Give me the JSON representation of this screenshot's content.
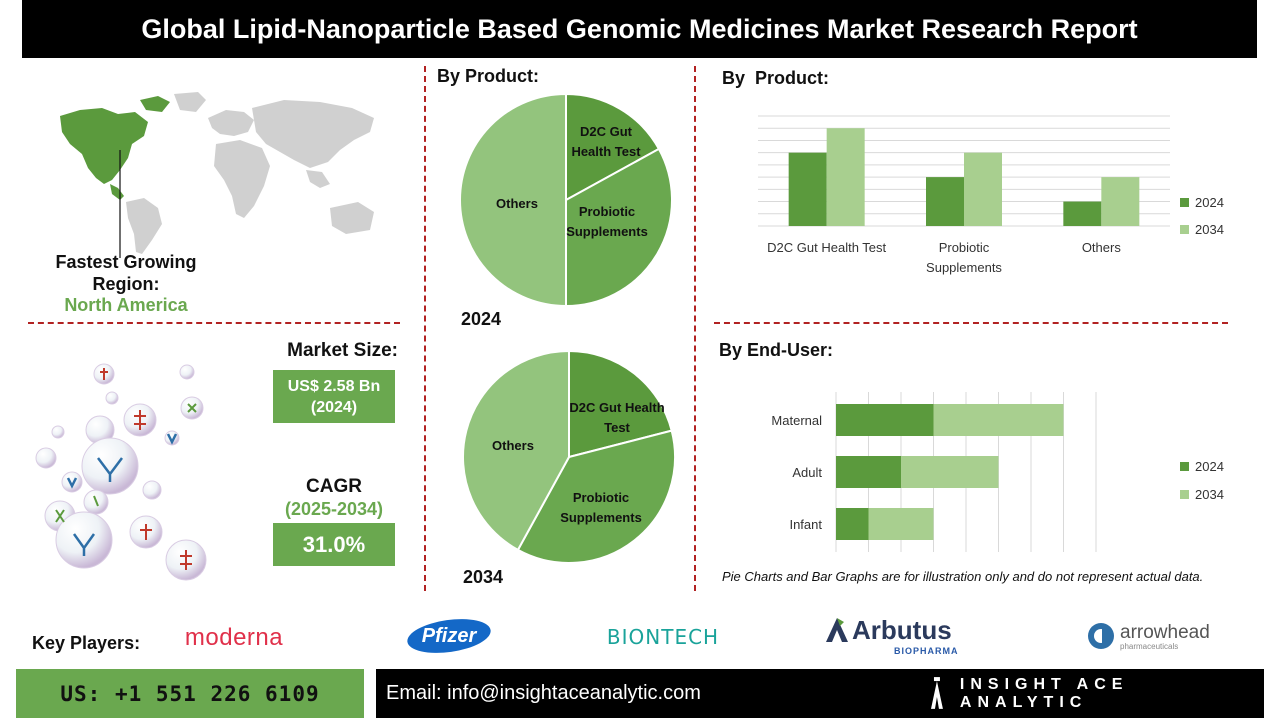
{
  "header": {
    "title": "Global Lipid-Nanoparticle Based Genomic Medicines Market Research Report"
  },
  "region": {
    "label": "Fastest Growing Region:",
    "value": "North America",
    "map_icon": "world-map-icon"
  },
  "market_size": {
    "label": "Market Size:",
    "value": "US$ 2.58 Bn",
    "year": "(2024)"
  },
  "cagr": {
    "label": "CAGR",
    "period": "(2025-2034)",
    "value": "31.0%"
  },
  "colors": {
    "dark_green": "#5b9a3d",
    "mid_green": "#6aa84f",
    "light_green": "#a8cf8f",
    "pie_light": "#93c47d",
    "divider_red": "#b22222"
  },
  "chart_data": [
    {
      "id": "pie_2024",
      "type": "pie",
      "title": "By Product:",
      "caption": "2024",
      "slices": [
        {
          "label": "D2C Gut Health Test",
          "value": 17,
          "color": "#5b9a3d"
        },
        {
          "label": "Probiotic Supplements",
          "value": 33,
          "color": "#6aa84f"
        },
        {
          "label": "Others",
          "value": 50,
          "color": "#93c47d"
        }
      ]
    },
    {
      "id": "pie_2034",
      "type": "pie",
      "caption": "2034",
      "slices": [
        {
          "label": "D2C Gut Health Test",
          "value": 21,
          "color": "#5b9a3d"
        },
        {
          "label": "Probiotic Supplements",
          "value": 37,
          "color": "#6aa84f"
        },
        {
          "label": "Others",
          "value": 42,
          "color": "#93c47d"
        }
      ]
    },
    {
      "id": "bar_product",
      "type": "bar",
      "title": "By  Product:",
      "categories": [
        "D2C Gut Health Test",
        "Probiotic Supplements",
        "Others"
      ],
      "series": [
        {
          "name": "2024",
          "values": [
            6,
            4,
            2
          ],
          "color": "#5b9a3d"
        },
        {
          "name": "2034",
          "values": [
            8,
            6,
            4
          ],
          "color": "#a8cf8f"
        }
      ],
      "ylim": [
        0,
        9
      ],
      "grid": true,
      "legend": "right"
    },
    {
      "id": "bar_enduser",
      "type": "bar",
      "orientation": "horizontal",
      "stacked": true,
      "title": "By End-User:",
      "categories": [
        "Maternal",
        "Adult",
        "Infant"
      ],
      "series": [
        {
          "name": "2024",
          "values": [
            3,
            2,
            1
          ],
          "color": "#5b9a3d"
        },
        {
          "name": "2034",
          "values": [
            4,
            3,
            2
          ],
          "color": "#a8cf8f"
        }
      ],
      "xlim": [
        0,
        8
      ],
      "grid": true,
      "legend": "right"
    }
  ],
  "note": "Pie Charts and Bar Graphs are for illustration only and do not represent actual data.",
  "key_players": {
    "label": "Key Players:",
    "companies": [
      "moderna",
      "Pfizer",
      "BIONTECH",
      "Arbutus",
      "arrowhead"
    ],
    "arbutus_sub": "BIOPHARMA",
    "arrowhead_sub": "pharmaceuticals"
  },
  "footer": {
    "phone": "US: +1 551 226 6109",
    "email": "Email: info@insightaceanalytic.com",
    "brand": "INSIGHT ACE ANALYTIC"
  }
}
